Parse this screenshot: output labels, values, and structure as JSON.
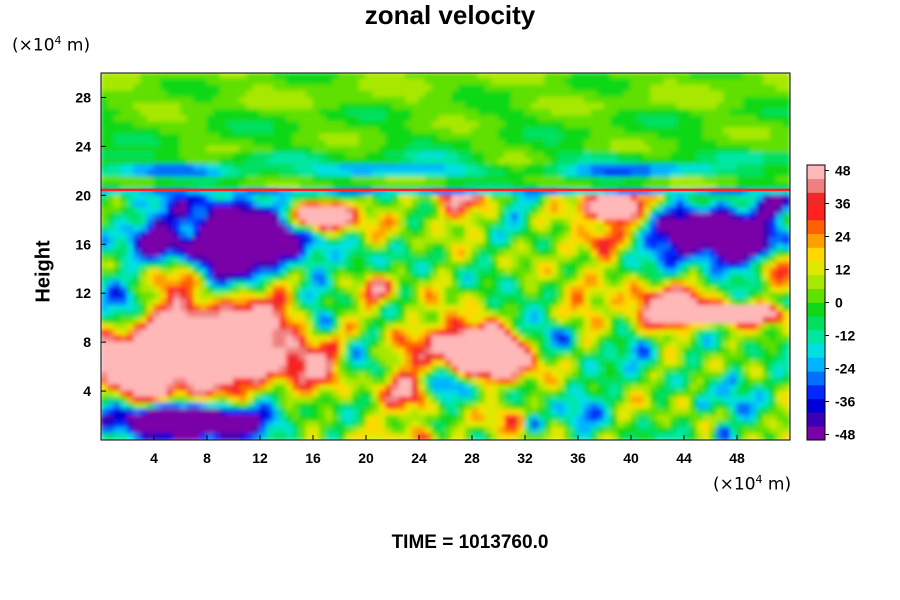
{
  "chart_data": {
    "type": "heatmap",
    "title": "zonal velocity",
    "ylabel": "Height",
    "xlabel": "",
    "footer": "TIME = 1013760.0",
    "x_unit": {
      "prefix": "(×10",
      "exp": "4",
      "suffix": " m)"
    },
    "y_unit": {
      "prefix": "(×10",
      "exp": "4",
      "suffix": " m)"
    },
    "xlim": [
      0,
      52
    ],
    "ylim": [
      0,
      30
    ],
    "x_ticks": [
      "4",
      "8",
      "12",
      "16",
      "20",
      "24",
      "28",
      "32",
      "36",
      "40",
      "44",
      "48"
    ],
    "x_tick_values": [
      4,
      8,
      12,
      16,
      20,
      24,
      28,
      32,
      36,
      40,
      44,
      48
    ],
    "y_ticks": [
      "4",
      "8",
      "12",
      "16",
      "20",
      "24",
      "28"
    ],
    "y_tick_values": [
      4,
      8,
      12,
      16,
      20,
      24,
      28
    ],
    "colorbar": {
      "min": -50,
      "max": 50,
      "tick_labels": [
        "48",
        "36",
        "24",
        "12",
        "0",
        "-12",
        "-24",
        "-36",
        "-48"
      ],
      "tick_values": [
        48,
        36,
        24,
        12,
        0,
        -12,
        -24,
        -36,
        -48
      ],
      "colors": [
        "#7a00a8",
        "#3a00b4",
        "#0000d8",
        "#0028ff",
        "#0070ff",
        "#00b4ff",
        "#00e0e0",
        "#00e6a0",
        "#00e060",
        "#10d818",
        "#60e000",
        "#a8e800",
        "#e0e800",
        "#ffd800",
        "#ffa000",
        "#ff6000",
        "#ff2020",
        "#f02828",
        "#f08080",
        "#ffb8b8"
      ]
    },
    "field_regions": [
      {
        "x": [
          0,
          52
        ],
        "y": [
          20.5,
          30
        ],
        "value": 0,
        "desc": "upper layer mostly near-zero velocity"
      },
      {
        "x": [
          0,
          52
        ],
        "y": [
          21.5,
          22.5
        ],
        "value": -30,
        "desc": "thin negative band"
      },
      {
        "x": [
          2,
          13
        ],
        "y": [
          12.5,
          19.5
        ],
        "value": -48
      },
      {
        "x": [
          42,
          52
        ],
        "y": [
          14,
          19
        ],
        "value": -48
      },
      {
        "x": [
          0,
          16
        ],
        "y": [
          4,
          11
        ],
        "value": 48
      },
      {
        "x": [
          25,
          33
        ],
        "y": [
          5,
          9
        ],
        "value": 48
      },
      {
        "x": [
          0,
          12
        ],
        "y": [
          0,
          3
        ],
        "value": -48
      },
      {
        "x": [
          14,
          19
        ],
        "y": [
          17,
          19.5
        ],
        "value": 48
      },
      {
        "x": [
          36,
          41
        ],
        "y": [
          18,
          20.3
        ],
        "value": 40
      },
      {
        "x": [
          43,
          52
        ],
        "y": [
          9.5,
          11
        ],
        "value": 40
      }
    ]
  }
}
